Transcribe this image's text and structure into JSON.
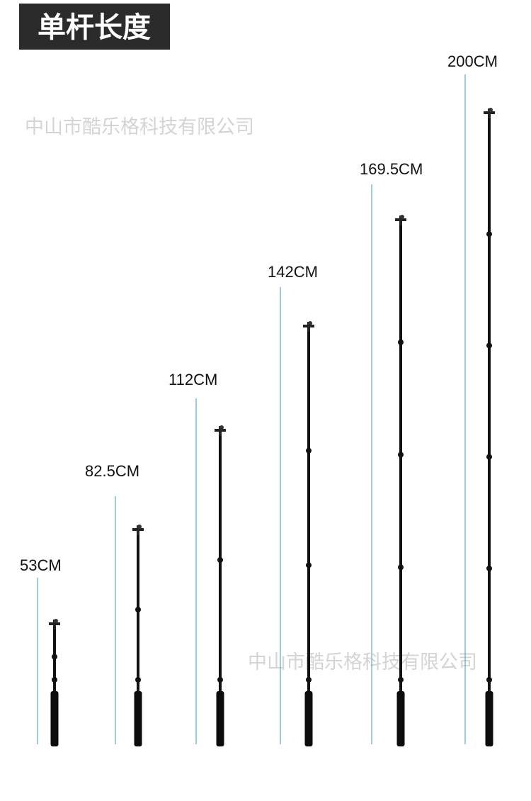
{
  "header": {
    "title": "单杆长度"
  },
  "watermarks": [
    "中山市酷乐格科技有限公司",
    "中山市酷乐格科技有限公司"
  ],
  "poles": [
    {
      "label": "53CM"
    },
    {
      "label": "82.5CM"
    },
    {
      "label": "112CM"
    },
    {
      "label": "142CM"
    },
    {
      "label": "169.5CM"
    },
    {
      "label": "200CM"
    }
  ]
}
